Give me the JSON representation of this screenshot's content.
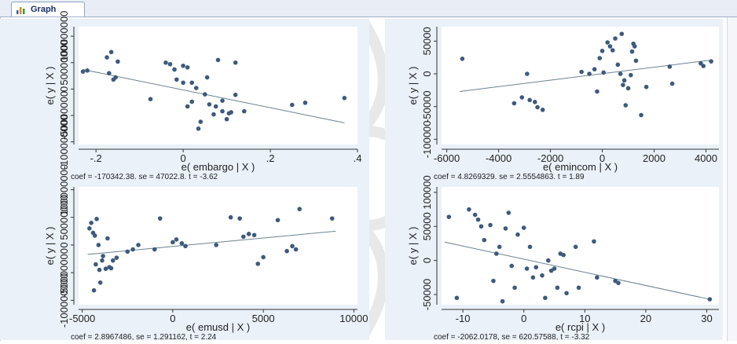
{
  "window": {
    "tab_label": "Graph",
    "tab_icon": "bar-chart-icon"
  },
  "colors": {
    "marker": "#3d5a7c",
    "fit_line": "#6b8290",
    "plot_bg": "#ffffff",
    "outer_bg": "#eaf1f8",
    "watermark": "#e3e3e3"
  },
  "chart_data": [
    {
      "type": "scatter",
      "id": "embargo",
      "xlabel": "e( embargo | X )",
      "ylabel": "e( y | X )",
      "xlim": [
        -0.24,
        0.4
      ],
      "ylim": [
        -105000000,
        118000000
      ],
      "x_ticks": [
        -0.2,
        0,
        0.2,
        0.4
      ],
      "x_tick_labels": [
        "-.2",
        "0",
        ".2",
        ".4"
      ],
      "y_ticks": [
        -100000000,
        -50000000,
        0,
        50000000,
        100000000
      ],
      "y_tick_labels": [
        "-100000000",
        "-50000000",
        "0",
        "50000000",
        "100000000"
      ],
      "fit_line": [
        [
          -0.23,
          37000000
        ],
        [
          0.37,
          -64000000
        ]
      ],
      "note": "coef = -170342.38, se = 47022.8, t = -3.62",
      "points": [
        [
          -0.23,
          33000000
        ],
        [
          -0.22,
          35000000
        ],
        [
          -0.175,
          60000000
        ],
        [
          -0.165,
          70000000
        ],
        [
          -0.17,
          30000000
        ],
        [
          -0.16,
          18000000
        ],
        [
          -0.155,
          22000000
        ],
        [
          -0.15,
          52000000
        ],
        [
          -0.075,
          -19000000
        ],
        [
          -0.04,
          50000000
        ],
        [
          -0.03,
          47000000
        ],
        [
          -0.02,
          37000000
        ],
        [
          -0.015,
          18000000
        ],
        [
          0,
          12000000
        ],
        [
          0,
          44000000
        ],
        [
          0.01,
          41000000
        ],
        [
          0.01,
          -33000000
        ],
        [
          0.02,
          -24000000
        ],
        [
          0.02,
          12000000
        ],
        [
          0.03,
          2000000
        ],
        [
          0.035,
          -75000000
        ],
        [
          0.04,
          -62000000
        ],
        [
          0.05,
          -10000000
        ],
        [
          0.055,
          22000000
        ],
        [
          0.06,
          -29000000
        ],
        [
          0.07,
          -48000000
        ],
        [
          0.075,
          -33000000
        ],
        [
          0.08,
          55000000
        ],
        [
          0.09,
          -22000000
        ],
        [
          0.09,
          -42000000
        ],
        [
          0.1,
          -57000000
        ],
        [
          0.105,
          -46000000
        ],
        [
          0.11,
          -44000000
        ],
        [
          0.12,
          -11000000
        ],
        [
          0.12,
          50000000
        ],
        [
          0.14,
          -42000000
        ],
        [
          0.25,
          -30000000
        ],
        [
          0.28,
          -26000000
        ],
        [
          0.37,
          -17000000
        ]
      ]
    },
    {
      "type": "scatter",
      "id": "emincom",
      "xlabel": "e( emincom | X )",
      "ylabel": "e( y | X )",
      "xlim": [
        -6200,
        4500
      ],
      "ylim": [
        -108000,
        72000
      ],
      "x_ticks": [
        -6000,
        -4000,
        -2000,
        0,
        2000,
        4000
      ],
      "x_tick_labels": [
        "-6000",
        "-4000",
        "-2000",
        "0",
        "2000",
        "4000"
      ],
      "y_ticks": [
        -100000,
        -50000,
        0,
        50000
      ],
      "y_tick_labels": [
        "-100000",
        "-50000",
        "0",
        "50000"
      ],
      "fit_line": [
        [
          -5500,
          -27000
        ],
        [
          4200,
          21000
        ]
      ],
      "note": "coef = 4.8269329, se = 2.5554863, t = 1.89",
      "points": [
        [
          -5400,
          23000
        ],
        [
          -3400,
          -45000
        ],
        [
          -3100,
          -36000
        ],
        [
          -2900,
          0
        ],
        [
          -2800,
          -40000
        ],
        [
          -2600,
          -43000
        ],
        [
          -2500,
          -51000
        ],
        [
          -2300,
          -55000
        ],
        [
          -800,
          3000
        ],
        [
          -500,
          0
        ],
        [
          -300,
          7000
        ],
        [
          -200,
          -27000
        ],
        [
          -100,
          24000
        ],
        [
          0,
          35000
        ],
        [
          50,
          2000
        ],
        [
          200,
          48000
        ],
        [
          300,
          42000
        ],
        [
          400,
          36000
        ],
        [
          500,
          54000
        ],
        [
          600,
          14000
        ],
        [
          700,
          0
        ],
        [
          750,
          61000
        ],
        [
          800,
          -17000
        ],
        [
          850,
          -10000
        ],
        [
          900,
          -48000
        ],
        [
          1000,
          -22000
        ],
        [
          1100,
          -2000
        ],
        [
          1150,
          34000
        ],
        [
          1200,
          46000
        ],
        [
          1250,
          42000
        ],
        [
          1300,
          20000
        ],
        [
          1500,
          -63000
        ],
        [
          1700,
          -20000
        ],
        [
          2600,
          11000
        ],
        [
          2700,
          -15000
        ],
        [
          3800,
          16000
        ],
        [
          3900,
          12000
        ],
        [
          4200,
          19000
        ]
      ]
    },
    {
      "type": "scatter",
      "id": "emusd",
      "xlabel": "e( emusd | X )",
      "ylabel": "e( y | X )",
      "xlim": [
        -5200,
        10200
      ],
      "ylim": [
        -108000000,
        105000000
      ],
      "x_ticks": [
        -5000,
        0,
        5000,
        10000
      ],
      "x_tick_labels": [
        "-5000",
        "0",
        "5000",
        "10000"
      ],
      "y_ticks": [
        -100000000,
        -50000000,
        0,
        50000000,
        100000000
      ],
      "y_tick_labels": [
        "-100000000",
        "-50000000",
        "0",
        "50000000",
        "100000000"
      ],
      "fit_line": [
        [
          -4700,
          -17000000
        ],
        [
          9000,
          25000000
        ]
      ],
      "note": "coef = 2.8967486, se = 1.291162, t = 2.24",
      "points": [
        [
          -4600,
          30000000
        ],
        [
          -4500,
          40000000
        ],
        [
          -4400,
          22000000
        ],
        [
          -4350,
          -82000000
        ],
        [
          -4300,
          17000000
        ],
        [
          -4250,
          -35000000
        ],
        [
          -4200,
          47000000
        ],
        [
          -4100,
          0
        ],
        [
          -4050,
          -45000000
        ],
        [
          -4000,
          -68000000
        ],
        [
          -3900,
          -28000000
        ],
        [
          -3850,
          -20000000
        ],
        [
          -3700,
          -43000000
        ],
        [
          -3600,
          12000000
        ],
        [
          -3500,
          -40000000
        ],
        [
          -3400,
          -42000000
        ],
        [
          -3300,
          -28000000
        ],
        [
          -3100,
          -23000000
        ],
        [
          -2500,
          -12000000
        ],
        [
          -2200,
          -8000000
        ],
        [
          -1900,
          0
        ],
        [
          -1000,
          -8000000
        ],
        [
          -700,
          48000000
        ],
        [
          0,
          5000000
        ],
        [
          200,
          10000000
        ],
        [
          500,
          3000000
        ],
        [
          700,
          -2000000
        ],
        [
          2400,
          0
        ],
        [
          3200,
          50000000
        ],
        [
          3700,
          48000000
        ],
        [
          3900,
          15000000
        ],
        [
          4200,
          20000000
        ],
        [
          4500,
          18000000
        ],
        [
          4700,
          -34000000
        ],
        [
          5000,
          -22000000
        ],
        [
          5800,
          45000000
        ],
        [
          6300,
          -11000000
        ],
        [
          6600,
          -2000000
        ],
        [
          6800,
          -8000000
        ],
        [
          7000,
          65000000
        ],
        [
          8800,
          48000000
        ]
      ]
    },
    {
      "type": "scatter",
      "id": "rcpi",
      "xlabel": "e( rcpi | X )",
      "ylabel": "e( y | X )",
      "xlim": [
        -13.5,
        32
      ],
      "ylim": [
        -65000,
        108000
      ],
      "x_ticks": [
        -10,
        0,
        10,
        20,
        30
      ],
      "x_tick_labels": [
        "-10",
        "0",
        "10",
        "20",
        "30"
      ],
      "y_ticks": [
        -50000,
        0,
        50000,
        100000
      ],
      "y_tick_labels": [
        "-50000",
        "0",
        "50000",
        "100000"
      ],
      "fit_line": [
        [
          -13,
          27000
        ],
        [
          30.5,
          -57000
        ]
      ],
      "note": "coef = -2062.0178, se = 620.57588, t = -3.32",
      "points": [
        [
          -12.3,
          64000
        ],
        [
          -11,
          -55000
        ],
        [
          -9,
          75000
        ],
        [
          -8,
          67000
        ],
        [
          -7.5,
          60000
        ],
        [
          -7,
          50000
        ],
        [
          -6.5,
          30000
        ],
        [
          -5.5,
          52000
        ],
        [
          -5,
          -30000
        ],
        [
          -4.5,
          10000
        ],
        [
          -4,
          20000
        ],
        [
          -3.5,
          -60000
        ],
        [
          -3,
          47000
        ],
        [
          -2.5,
          70000
        ],
        [
          -2,
          -8000
        ],
        [
          -1.5,
          -40000
        ],
        [
          -1,
          38000
        ],
        [
          0,
          48000
        ],
        [
          0.5,
          -12000
        ],
        [
          1,
          20000
        ],
        [
          1.5,
          -25000
        ],
        [
          2,
          -10000
        ],
        [
          3,
          -22000
        ],
        [
          3.5,
          -55000
        ],
        [
          4,
          0
        ],
        [
          4.5,
          -15000
        ],
        [
          5,
          -12000
        ],
        [
          5.5,
          -40000
        ],
        [
          6,
          10000
        ],
        [
          6.5,
          8000
        ],
        [
          7,
          -48000
        ],
        [
          8.5,
          20000
        ],
        [
          9,
          -40000
        ],
        [
          11.5,
          28000
        ],
        [
          12,
          -25000
        ],
        [
          15,
          -30000
        ],
        [
          15.5,
          -33000
        ],
        [
          30.5,
          -57000
        ]
      ]
    }
  ]
}
